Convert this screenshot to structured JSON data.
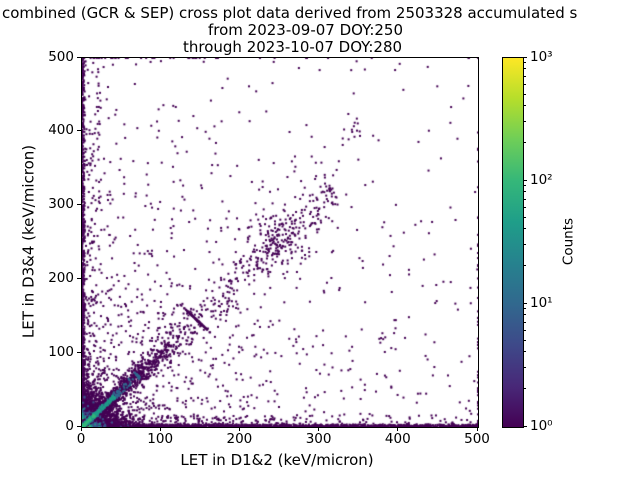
{
  "chart_data": {
    "type": "scatter",
    "subtype": "2d-histogram density cross plot",
    "title_line1": "combined (GCR & SEP) cross plot data derived from 2503328 accumulated s",
    "title_line2": "from 2023-09-07 DOY:250",
    "title_line3": "through 2023-10-07 DOY:280",
    "xlabel": "LET in D1&2 (keV/micron)",
    "ylabel": "LET in D3&4 (keV/micron)",
    "xlim": [
      0,
      500
    ],
    "ylim": [
      0,
      500
    ],
    "x_tick_labels": [
      "0",
      "100",
      "200",
      "300",
      "400",
      "500"
    ],
    "y_tick_labels": [
      "0",
      "100",
      "200",
      "300",
      "400",
      "500"
    ],
    "grid": false,
    "background": "#ffffff",
    "spine_color": "#000000",
    "colorbar": {
      "label": "Counts",
      "scale": "log",
      "range": [
        1,
        1000
      ],
      "tick_labels": [
        "10⁰",
        "10¹",
        "10²",
        "10³"
      ],
      "tick_exponents": [
        0,
        1,
        2,
        3
      ],
      "minor_ticks": [
        2,
        3,
        4,
        5,
        6,
        7,
        8,
        9
      ],
      "colormap": "viridis",
      "stops": [
        "#440154",
        "#482878",
        "#3e4989",
        "#31688e",
        "#26828e",
        "#1f9e89",
        "#35b779",
        "#6ece58",
        "#b5de2b",
        "#fde725"
      ]
    },
    "density_components": [
      {
        "type": "uniform2exp",
        "n": 950,
        "sx": 170,
        "sy": 170,
        "color": "#440154"
      },
      {
        "type": "uniform",
        "n": 110,
        "color": "#440154"
      },
      {
        "type": "edge_x",
        "n": 1600,
        "h": 3.5,
        "pow": 1.4,
        "xmax": 500,
        "color": "#440154"
      },
      {
        "type": "edge_x",
        "n": 460,
        "h": 16,
        "pow": 2.2,
        "xmax": 500,
        "color": "#440154"
      },
      {
        "type": "edge_x",
        "n": 170,
        "h": 2.2,
        "pow": 1.5,
        "xmax": 60,
        "color": "#3b528b"
      },
      {
        "type": "edge_x",
        "n": 90,
        "h": 1.4,
        "pow": 1.5,
        "xmax": 26,
        "color": "#21918c"
      },
      {
        "type": "edge_x",
        "n": 35,
        "h": 1.0,
        "pow": 1.5,
        "xmax": 11,
        "color": "#5ec962"
      },
      {
        "type": "edge_y",
        "n": 850,
        "w": 3.5,
        "pow": 1.5,
        "ymax": 500,
        "color": "#440154"
      },
      {
        "type": "edge_y",
        "n": 380,
        "w": 24,
        "pow": 2.3,
        "ymax": 500,
        "color": "#440154"
      },
      {
        "type": "edge_y",
        "n": 130,
        "w": 2.2,
        "pow": 1.5,
        "ymax": 45,
        "color": "#3b528b"
      },
      {
        "type": "edge_y",
        "n": 60,
        "w": 1.4,
        "pow": 1.5,
        "ymax": 18,
        "color": "#21918c"
      },
      {
        "type": "exp2d",
        "n": 2400,
        "scale": 16,
        "color": "#440154"
      },
      {
        "type": "exp2d",
        "n": 420,
        "scale": 6,
        "color": "#3b528b"
      },
      {
        "type": "exp2d",
        "n": 240,
        "scale": 3.2,
        "color": "#21918c"
      },
      {
        "type": "exp2d",
        "n": 130,
        "scale": 2.0,
        "color": "#35b779"
      },
      {
        "type": "exp2d",
        "n": 60,
        "scale": 1.3,
        "color": "#b5de2b"
      },
      {
        "type": "exp2d",
        "n": 28,
        "scale": 0.8,
        "color": "#fde725"
      },
      {
        "type": "diag",
        "n": 1300,
        "len": 145,
        "decay": 60,
        "sigma": 1.5,
        "grow": 0.075,
        "color": "#440154"
      },
      {
        "type": "diag",
        "n": 210,
        "len": 70,
        "decay": 30,
        "sigma": 1.3,
        "grow": 0.02,
        "color": "#31688e"
      },
      {
        "type": "diag",
        "n": 240,
        "len": 40,
        "decay": 18,
        "sigma": 0.9,
        "grow": 0.012,
        "color": "#1f9e89"
      },
      {
        "type": "diag",
        "n": 60,
        "len": 15,
        "decay": 7,
        "sigma": 0.6,
        "grow": 0.01,
        "color": "#35b779"
      },
      {
        "type": "diag_range",
        "n": 230,
        "t0": 140,
        "t1": 320,
        "sigma": 13,
        "color": "#440154"
      },
      {
        "type": "gauss",
        "n": 150,
        "cx": 247,
        "cy": 250,
        "sx": 20,
        "sy": 24,
        "color": "#440154"
      },
      {
        "type": "gauss",
        "n": 14,
        "cx": 340,
        "cy": 400,
        "sx": 12,
        "sy": 14,
        "color": "#440154"
      },
      {
        "type": "gauss",
        "n": 12,
        "cx": 300,
        "cy": 345,
        "sx": 18,
        "sy": 20,
        "color": "#440154"
      }
    ]
  }
}
